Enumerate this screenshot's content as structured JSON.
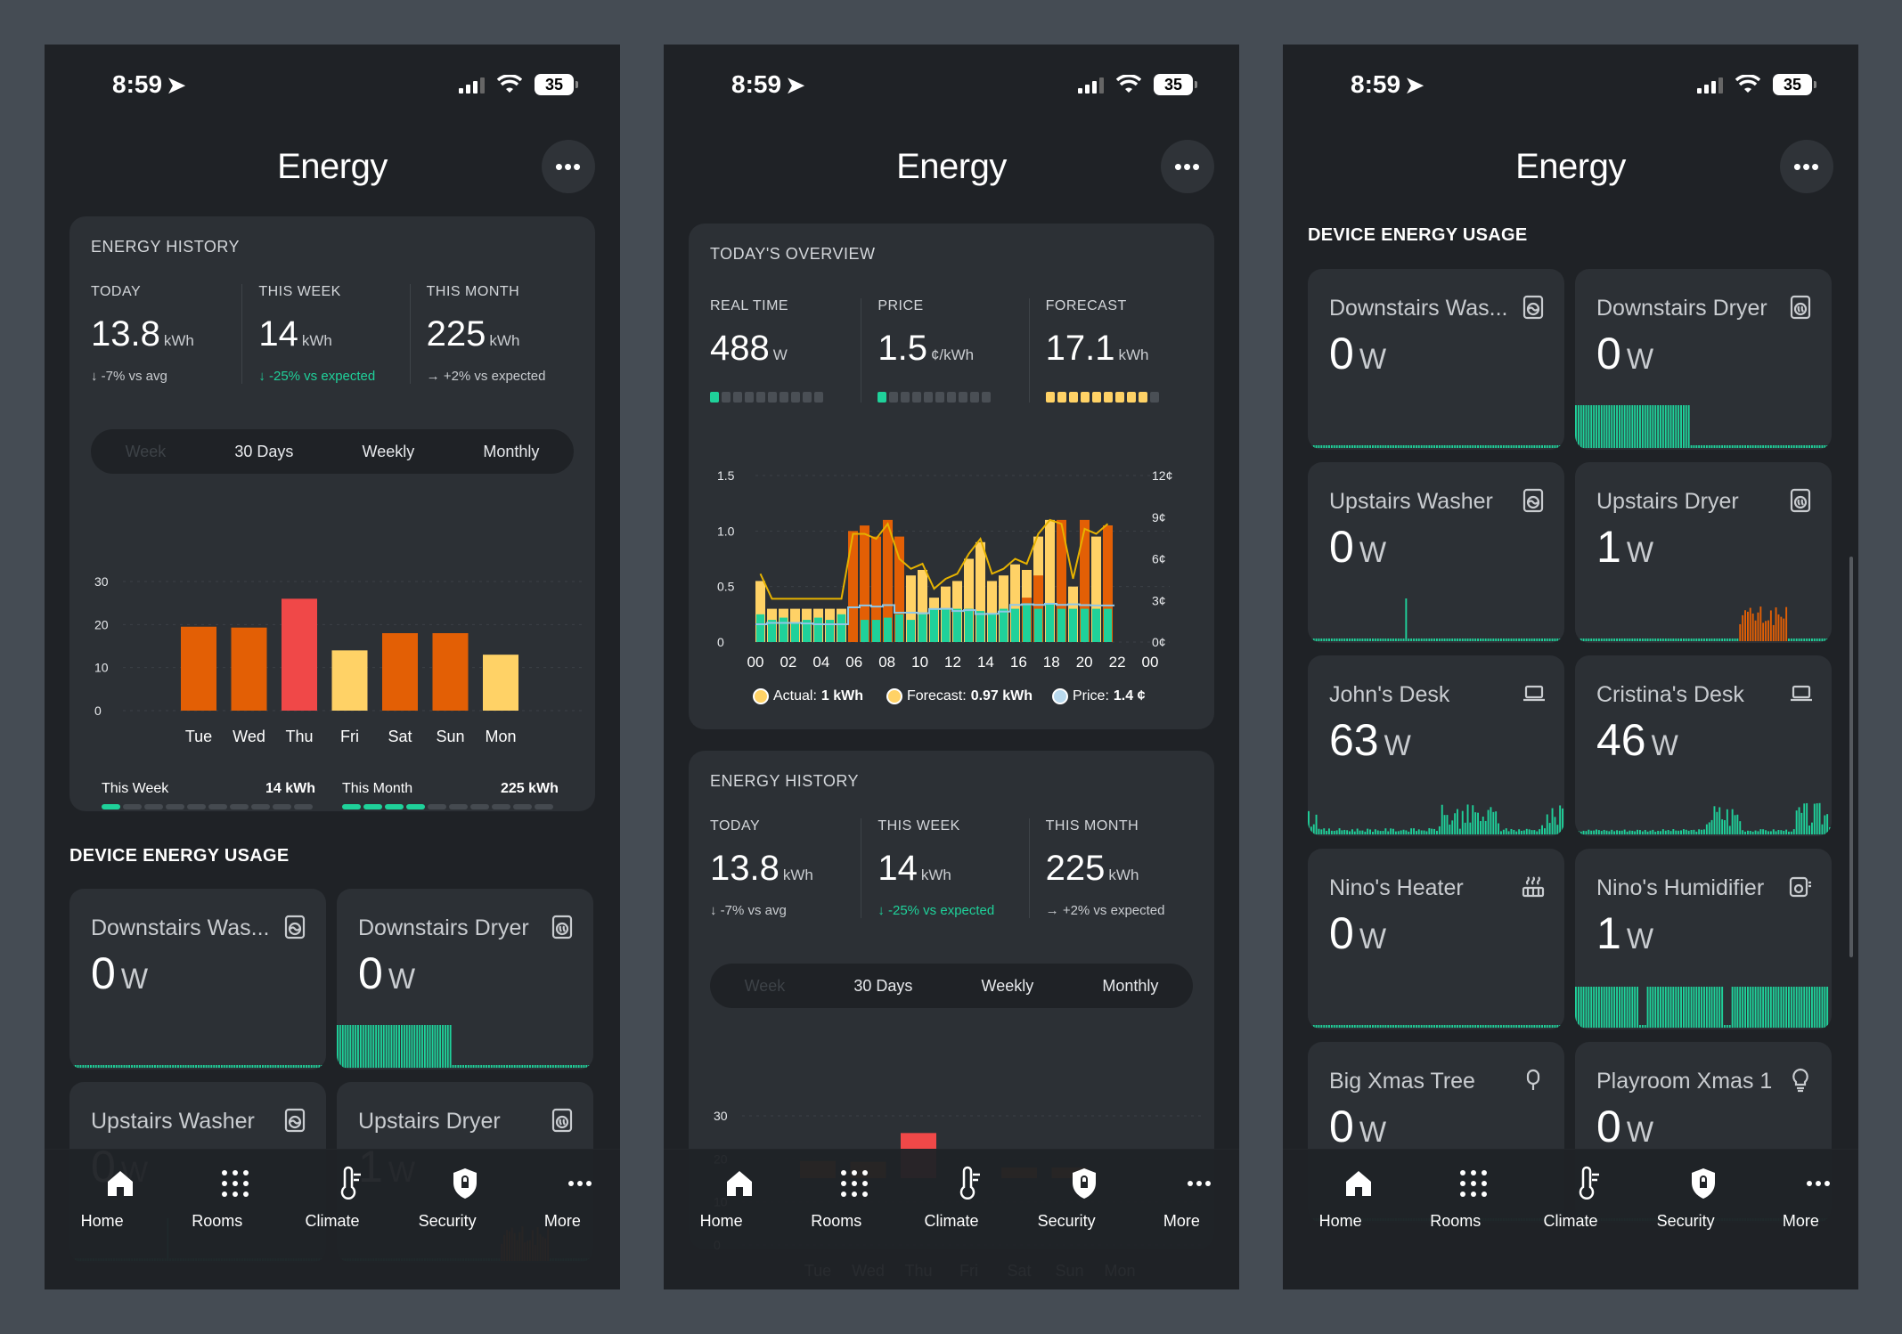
{
  "status": {
    "time": "8:59",
    "battery": "35"
  },
  "title": "Energy",
  "more_glyph": "•••",
  "history": {
    "title": "ENERGY HISTORY",
    "today": {
      "label": "TODAY",
      "value": "13.8",
      "unit": "kWh",
      "delta": "↓ -7% vs avg"
    },
    "week": {
      "label": "THIS WEEK",
      "value": "14",
      "unit": "kWh",
      "delta": "↓ -25% vs expected"
    },
    "month": {
      "label": "THIS MONTH",
      "value": "225",
      "unit": "kWh",
      "delta": "→ +2% vs expected"
    },
    "segments": [
      "Week",
      "30 Days",
      "Weekly",
      "Monthly"
    ],
    "footer": {
      "week_label": "This Week",
      "week_value": "14 kWh",
      "month_label": "This Month",
      "month_value": "225 kWh",
      "week_progress": 1,
      "month_progress": 4,
      "progress_total": 10
    }
  },
  "overview": {
    "title": "TODAY'S OVERVIEW",
    "realtime": {
      "label": "REAL TIME",
      "value": "488",
      "unit": "W",
      "level": 1
    },
    "price": {
      "label": "PRICE",
      "value": "1.5",
      "unit": "¢/kWh",
      "level": 1
    },
    "forecast": {
      "label": "FORECAST",
      "value": "17.1",
      "unit": "kWh",
      "level": 9
    },
    "legend": {
      "actual_label": "Actual:",
      "actual_value": "1 kWh",
      "forecast_label": "Forecast:",
      "forecast_value": "0.97 kWh",
      "price_label": "Price:",
      "price_value": "1.4 ¢"
    }
  },
  "devices": {
    "title": "DEVICE ENERGY USAGE",
    "items": [
      {
        "name": "Downstairs Was...",
        "value": "0",
        "unit": "W",
        "icon": "washer-icon"
      },
      {
        "name": "Downstairs Dryer",
        "value": "0",
        "unit": "W",
        "icon": "dryer-icon"
      },
      {
        "name": "Upstairs Washer",
        "value": "0",
        "unit": "W",
        "icon": "washer-icon"
      },
      {
        "name": "Upstairs Dryer",
        "value": "1",
        "unit": "W",
        "icon": "dryer-icon"
      },
      {
        "name": "John's Desk",
        "value": "63",
        "unit": "W",
        "icon": "laptop-icon"
      },
      {
        "name": "Cristina's Desk",
        "value": "46",
        "unit": "W",
        "icon": "laptop-icon"
      },
      {
        "name": "Nino's Heater",
        "value": "0",
        "unit": "W",
        "icon": "heater-icon"
      },
      {
        "name": "Nino's Humidifier",
        "value": "1",
        "unit": "W",
        "icon": "humidifier-icon"
      },
      {
        "name": "Big Xmas Tree",
        "value": "0",
        "unit": "W",
        "icon": "plug-icon"
      },
      {
        "name": "Playroom Xmas 1",
        "value": "0",
        "unit": "W",
        "icon": "bulb-icon"
      }
    ]
  },
  "tabbar": [
    {
      "label": "Home",
      "icon": "home-icon"
    },
    {
      "label": "Rooms",
      "icon": "grid-icon"
    },
    {
      "label": "Climate",
      "icon": "thermometer-icon"
    },
    {
      "label": "Security",
      "icon": "shield-icon"
    },
    {
      "label": "More",
      "icon": "more-icon"
    }
  ],
  "colors": {
    "orange": "#e35f05",
    "red": "#f04848",
    "yellow": "#ffd266",
    "green": "#1fd19a",
    "blue": "#8fc8e8"
  },
  "chart_data": [
    {
      "type": "bar",
      "categories": [
        "Tue",
        "Wed",
        "Thu",
        "Fri",
        "Sat",
        "Sun",
        "Mon"
      ],
      "values": [
        19.5,
        19.3,
        26,
        14,
        18,
        18,
        13
      ],
      "ylim": [
        0,
        30
      ],
      "yticks": [
        0,
        10,
        20,
        30
      ],
      "colors": [
        "orange",
        "orange",
        "red",
        "yellow",
        "orange",
        "orange",
        "yellow"
      ]
    },
    {
      "type": "bar",
      "x_ticks": [
        "00",
        "02",
        "04",
        "06",
        "08",
        "10",
        "12",
        "14",
        "16",
        "18",
        "20",
        "22",
        "00"
      ],
      "y_left_ticks": [
        "1.5",
        "1.0",
        "0.5",
        "0"
      ],
      "y_right_ticks": [
        "12¢",
        "9¢",
        "6¢",
        "3¢",
        "0¢"
      ],
      "ylim": [
        0,
        1.5
      ],
      "y2lim": [
        0,
        12
      ],
      "series": [
        {
          "name": "Forecast",
          "color": "yellow",
          "values": [
            0.55,
            0.3,
            0.3,
            0.3,
            0.3,
            0.3,
            0.3,
            0.3,
            0.95,
            0.95,
            0.9,
            1.05,
            0.7,
            0.6,
            0.65,
            0.4,
            0.5,
            0.55,
            0.75,
            0.9,
            0.55,
            0.6,
            0.7,
            0.65,
            0.95,
            1.1,
            1.05,
            0.5,
            1.0,
            0.95,
            1.05
          ]
        },
        {
          "name": "Actual",
          "color": "green",
          "values": [
            0.25,
            0.2,
            0.22,
            0.18,
            0.2,
            0.22,
            0.2,
            0.25,
            0.0,
            0.2,
            0.2,
            0.22,
            0.25,
            0.2,
            0.25,
            0.3,
            0.3,
            0.3,
            0.3,
            0.28,
            0.25,
            0.3,
            0.3,
            0.35,
            0.3,
            0.35,
            0.3,
            0.3,
            0.3,
            0.3,
            0.3
          ],
          "bar_tops": [
            0,
            0,
            0,
            0,
            0,
            0,
            0,
            0,
            1.0,
            1.05,
            0.95,
            1.1,
            0.95,
            0,
            0,
            0,
            0,
            0,
            0,
            0,
            0,
            0,
            0,
            0.4,
            0.6,
            0,
            1.1,
            0,
            1.1,
            0,
            1.05
          ]
        },
        {
          "name": "Price",
          "color": "blue",
          "values": [
            1.4,
            1.9,
            1.9,
            1.9,
            1.7,
            1.4,
            1.4,
            1.4,
            7.5,
            8.2,
            7.8,
            8.3,
            5.6,
            5.6,
            5.4,
            6.9,
            7.0,
            6.2,
            6.5,
            5.1,
            5.2,
            6.0,
            8.4,
            8.6,
            8.4,
            8.8,
            8.4,
            8.6,
            8.3,
            8.2,
            8.2
          ]
        }
      ]
    }
  ]
}
